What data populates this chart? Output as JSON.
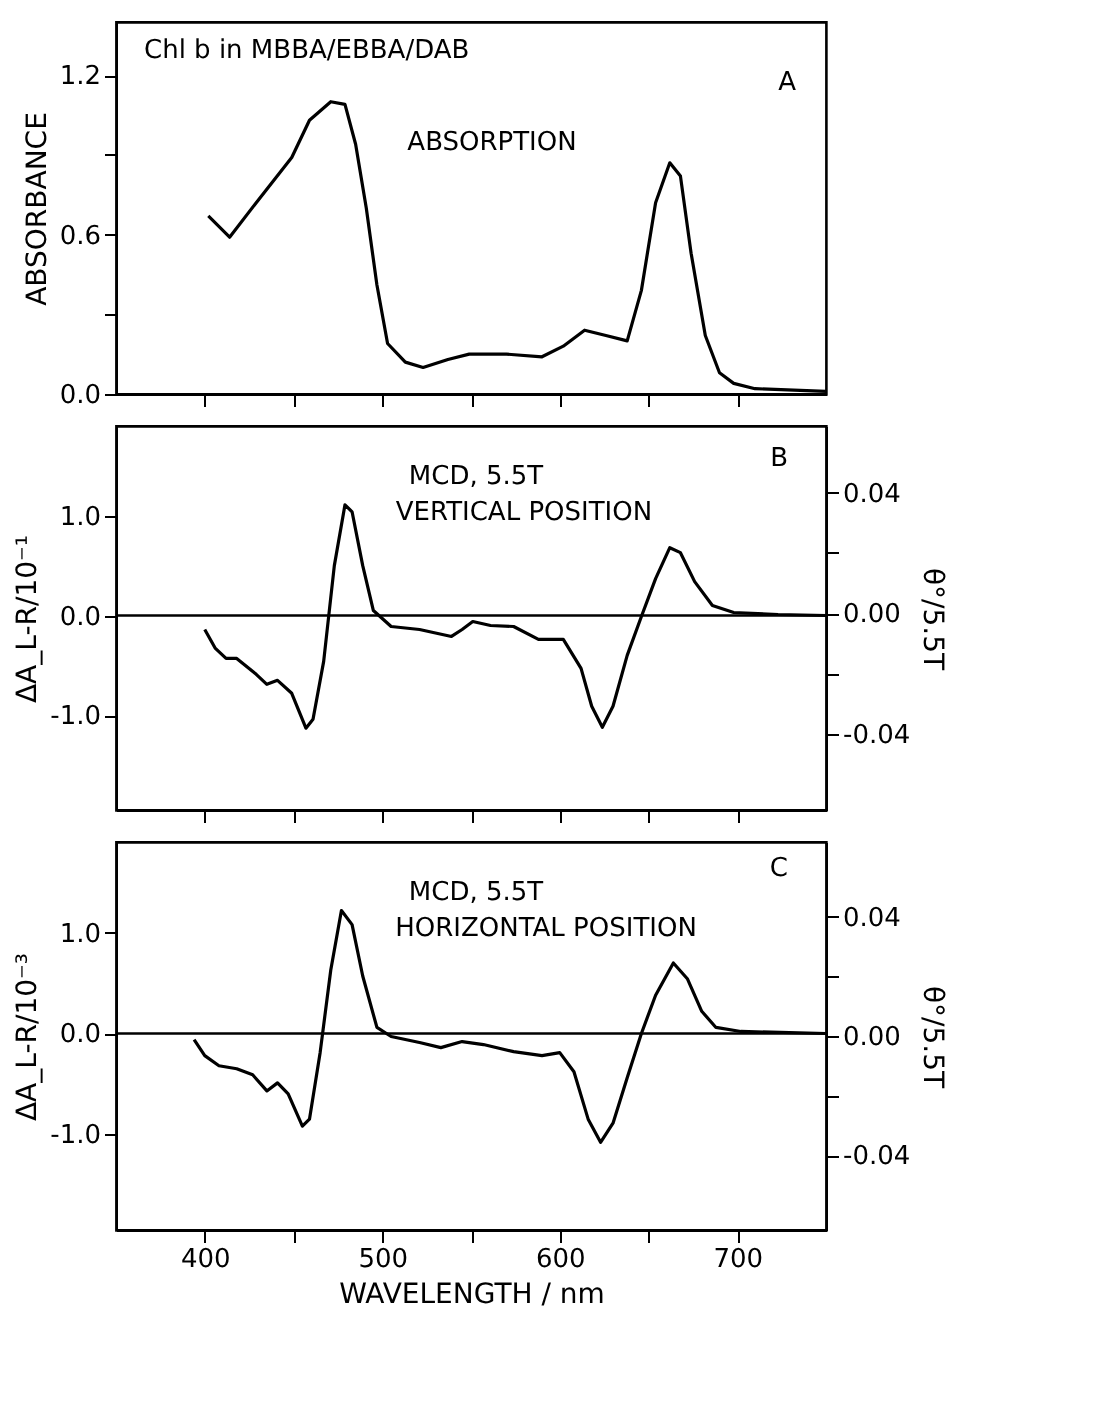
{
  "chart_data": [
    {
      "type": "line",
      "ylabel": "ABSORBANCE",
      "annotations": [
        "Chl b in MBBA/EBBA/DAB",
        "A",
        "ABSORPTION"
      ],
      "xlim": [
        350,
        750
      ],
      "xticks": [
        400,
        450,
        500,
        550,
        600,
        650,
        700
      ],
      "ylim": [
        0,
        1.4
      ],
      "yticks": [
        {
          "value": 0,
          "label": "0.0"
        },
        {
          "value": 0.3,
          "label": null
        },
        {
          "value": 0.6,
          "label": "0.6"
        },
        {
          "value": 0.9,
          "label": null
        },
        {
          "value": 1.2,
          "label": "1.2"
        }
      ],
      "tick_labels": "y",
      "grid": false,
      "series": [
        {
          "color": "#000000",
          "x": [
            402,
            414,
            429,
            449,
            459,
            471,
            479,
            485,
            491,
            497,
            503,
            513,
            523,
            537,
            549,
            570,
            590,
            602,
            614,
            626,
            638,
            646,
            654,
            662,
            668,
            674,
            682,
            690,
            698,
            710,
            750
          ],
          "values": [
            0.67,
            0.59,
            0.72,
            0.89,
            1.03,
            1.1,
            1.09,
            0.94,
            0.7,
            0.41,
            0.19,
            0.12,
            0.1,
            0.13,
            0.15,
            0.15,
            0.14,
            0.18,
            0.24,
            0.22,
            0.2,
            0.39,
            0.72,
            0.87,
            0.82,
            0.53,
            0.22,
            0.08,
            0.04,
            0.02,
            0.01
          ]
        }
      ]
    },
    {
      "type": "line",
      "ylabel": "ΔA_L-R/10⁻¹",
      "y2label": "θ°/5.5T",
      "annotations": [
        "MCD, 5.5T",
        "VERTICAL POSITION",
        "B"
      ],
      "xlim": [
        350,
        750
      ],
      "xticks": [
        400,
        450,
        500,
        550,
        600,
        650,
        700
      ],
      "ylim": [
        -1.95,
        1.9
      ],
      "yticks": [
        {
          "value": -1,
          "label": "-1.0"
        },
        {
          "value": 0,
          "label": "0.0"
        },
        {
          "value": 1,
          "label": "1.0"
        }
      ],
      "y2lim": [
        -0.065,
        0.062
      ],
      "y2ticks": [
        {
          "value": -0.04,
          "label": "-0.04"
        },
        {
          "value": -0.02,
          "label": null
        },
        {
          "value": 0,
          "label": "0.00"
        },
        {
          "value": 0.02,
          "label": null
        },
        {
          "value": 0.04,
          "label": "0.04"
        }
      ],
      "tick_labels": "y",
      "grid": false,
      "ref_lines": [
        {
          "axis": "y",
          "value": 0,
          "color": "#000000"
        }
      ],
      "series": [
        {
          "color": "#000000",
          "x": [
            400,
            406,
            412,
            418,
            429,
            435,
            441,
            449,
            457,
            461,
            467,
            473,
            479,
            483,
            489,
            495,
            505,
            521,
            539,
            545,
            551,
            561,
            574,
            588,
            602,
            612,
            618,
            624,
            630,
            638,
            646,
            654,
            662,
            668,
            676,
            686,
            698,
            723,
            750
          ],
          "values": [
            -0.14,
            -0.33,
            -0.43,
            -0.43,
            -0.59,
            -0.69,
            -0.65,
            -0.78,
            -1.13,
            -1.04,
            -0.46,
            0.5,
            1.11,
            1.04,
            0.5,
            0.05,
            -0.11,
            -0.14,
            -0.21,
            -0.14,
            -0.06,
            -0.1,
            -0.11,
            -0.24,
            -0.24,
            -0.53,
            -0.91,
            -1.12,
            -0.91,
            -0.4,
            -0.01,
            0.37,
            0.68,
            0.63,
            0.34,
            0.1,
            0.03,
            0.01,
            0
          ]
        }
      ]
    },
    {
      "type": "line",
      "ylabel": "ΔA_L-R/10⁻³",
      "y2label": "θ°/5.5T",
      "xlabel": "WAVELENGTH / nm",
      "annotations": [
        "MCD, 5.5T",
        "HORIZONTAL POSITION",
        "C"
      ],
      "xlim": [
        350,
        750
      ],
      "xticks": [
        400,
        {
          "value": 450,
          "label": null
        },
        500,
        {
          "value": 550,
          "label": null
        },
        600,
        {
          "value": 650,
          "label": null
        },
        700
      ],
      "ylim": [
        -1.95,
        1.9
      ],
      "yticks": [
        {
          "value": -1,
          "label": "-1.0"
        },
        {
          "value": 0,
          "label": "0.0"
        },
        {
          "value": 1,
          "label": "1.0"
        }
      ],
      "y2lim": [
        -0.065,
        0.065
      ],
      "y2ticks": [
        {
          "value": -0.04,
          "label": "-0.04"
        },
        {
          "value": -0.02,
          "label": null
        },
        {
          "value": 0,
          "label": "0.00"
        },
        {
          "value": 0.02,
          "label": null
        },
        {
          "value": 0.04,
          "label": "0.04"
        }
      ],
      "grid": false,
      "ref_lines": [
        {
          "axis": "y",
          "value": 0,
          "color": "#000000"
        }
      ],
      "series": [
        {
          "color": "#000000",
          "x": [
            394,
            400,
            408,
            418,
            427,
            435,
            441,
            447,
            455,
            459,
            465,
            471,
            477,
            483,
            489,
            497,
            505,
            521,
            533,
            545,
            557,
            574,
            590,
            600,
            608,
            616,
            623,
            630,
            638,
            646,
            654,
            664,
            672,
            680,
            688,
            702,
            750
          ],
          "values": [
            -0.06,
            -0.22,
            -0.32,
            -0.35,
            -0.41,
            -0.57,
            -0.49,
            -0.6,
            -0.92,
            -0.85,
            -0.19,
            0.63,
            1.22,
            1.08,
            0.57,
            0.06,
            -0.03,
            -0.09,
            -0.14,
            -0.08,
            -0.11,
            -0.18,
            -0.22,
            -0.19,
            -0.38,
            -0.85,
            -1.08,
            -0.89,
            -0.44,
            0,
            0.38,
            0.7,
            0.54,
            0.22,
            0.06,
            0.02,
            0
          ]
        }
      ]
    }
  ]
}
